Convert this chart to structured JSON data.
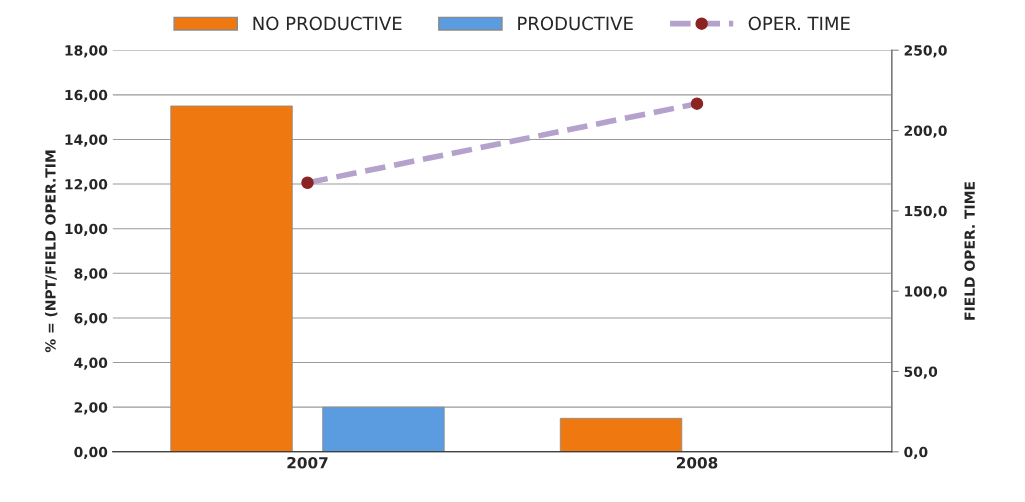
{
  "chart_data": {
    "type": "bar",
    "categories": [
      "2007",
      "2008"
    ],
    "series": [
      {
        "name": "NO PRODUCTIVE",
        "color": "#f07810",
        "values": [
          15.5,
          1.5
        ]
      },
      {
        "name": "PRODUCTIVE",
        "color": "#5b9bdf",
        "values": [
          2.0,
          null
        ]
      },
      {
        "name": "OPER. TIME",
        "type": "line",
        "axis": "y2",
        "color": "#b4a2cc",
        "marker": "circle",
        "line_style": "dashed",
        "values": [
          167.5,
          216.7
        ]
      }
    ],
    "ylabel": "% = (NPT/FIELD OPER.TIM",
    "y2label": "FIELD OPER. TIME",
    "ylim": [
      0,
      18
    ],
    "yticks": [
      {
        "value": 0,
        "label": "0,00"
      },
      {
        "value": 2,
        "label": "2,00"
      },
      {
        "value": 4,
        "label": "4,00"
      },
      {
        "value": 6,
        "label": "6,00"
      },
      {
        "value": 8,
        "label": "8,00"
      },
      {
        "value": 10,
        "label": "10,00"
      },
      {
        "value": 12,
        "label": "12,00"
      },
      {
        "value": 14,
        "label": "14,00"
      },
      {
        "value": 16,
        "label": "16,00"
      },
      {
        "value": 18,
        "label": "18,00"
      }
    ],
    "y2lim": [
      0,
      250
    ],
    "y2ticks": [
      {
        "value": 0,
        "label": "0,0"
      },
      {
        "value": 50,
        "label": "50,0"
      },
      {
        "value": 100,
        "label": "100,0"
      },
      {
        "value": 150,
        "label": "150,0"
      },
      {
        "value": 200,
        "label": "200,0"
      },
      {
        "value": 250,
        "label": "250,0"
      }
    ],
    "grid": "y",
    "legend": "top"
  }
}
